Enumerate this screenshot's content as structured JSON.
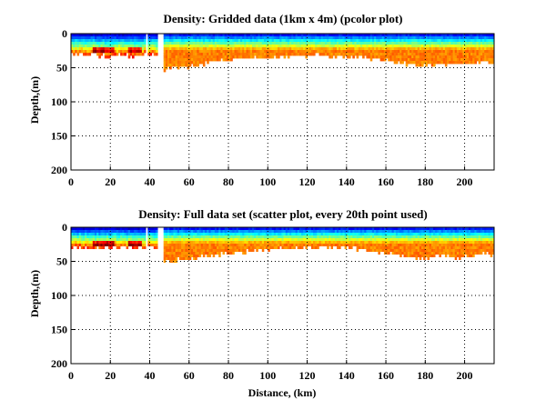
{
  "chart_data": [
    {
      "type": "heatmap",
      "style": "pcolor",
      "title": "Density: Gridded data (1km x 4m) (pcolor plot)",
      "xlabel": "",
      "ylabel": "Depth,(m)",
      "xlim": [
        0,
        215
      ],
      "ylim": [
        0,
        200
      ],
      "y_reversed": true,
      "xticks": [
        0,
        20,
        40,
        60,
        80,
        100,
        120,
        140,
        160,
        180,
        200
      ],
      "yticks": [
        0,
        50,
        100,
        150,
        200
      ],
      "grid": true,
      "colormap": "jet",
      "data_gaps_km": [
        [
          38,
          39
        ],
        [
          44,
          47
        ]
      ],
      "segments": [
        {
          "x_start": 0,
          "x_end": 44,
          "bottom_depth": [
            30,
            30,
            30,
            30,
            30,
            30,
            30,
            30,
            30,
            30,
            30,
            30
          ]
        },
        {
          "x_start": 47,
          "x_end": 215,
          "bottom_depth": [
            50,
            48,
            46,
            44,
            40,
            38,
            36,
            34,
            33,
            32,
            32,
            31,
            31,
            30,
            30,
            31,
            32,
            33,
            35,
            38,
            41,
            43,
            45,
            42,
            44,
            46,
            40,
            38,
            45
          ]
        }
      ]
    },
    {
      "type": "scatter",
      "title": "Density: Full data set (scatter plot, every 20th point used)",
      "xlabel": "Distance, (km)",
      "ylabel": "Depth,(m)",
      "xlim": [
        0,
        215
      ],
      "ylim": [
        0,
        200
      ],
      "y_reversed": true,
      "xticks": [
        0,
        20,
        40,
        60,
        80,
        100,
        120,
        140,
        160,
        180,
        200
      ],
      "yticks": [
        0,
        50,
        100,
        150,
        200
      ],
      "grid": true,
      "colormap": "jet",
      "data_gaps_km": [
        [
          38,
          39
        ],
        [
          44,
          47
        ]
      ],
      "segments": [
        {
          "x_start": 0,
          "x_end": 44,
          "bottom_depth": [
            28,
            28,
            28,
            28,
            28,
            28,
            28,
            28,
            28,
            28,
            28,
            28
          ]
        },
        {
          "x_start": 47,
          "x_end": 215,
          "bottom_depth": [
            48,
            46,
            44,
            42,
            40,
            38,
            36,
            34,
            32,
            31,
            30,
            29,
            28,
            28,
            28,
            29,
            30,
            32,
            34,
            38,
            40,
            42,
            44,
            40,
            42,
            44,
            38,
            36,
            40
          ]
        }
      ]
    }
  ]
}
